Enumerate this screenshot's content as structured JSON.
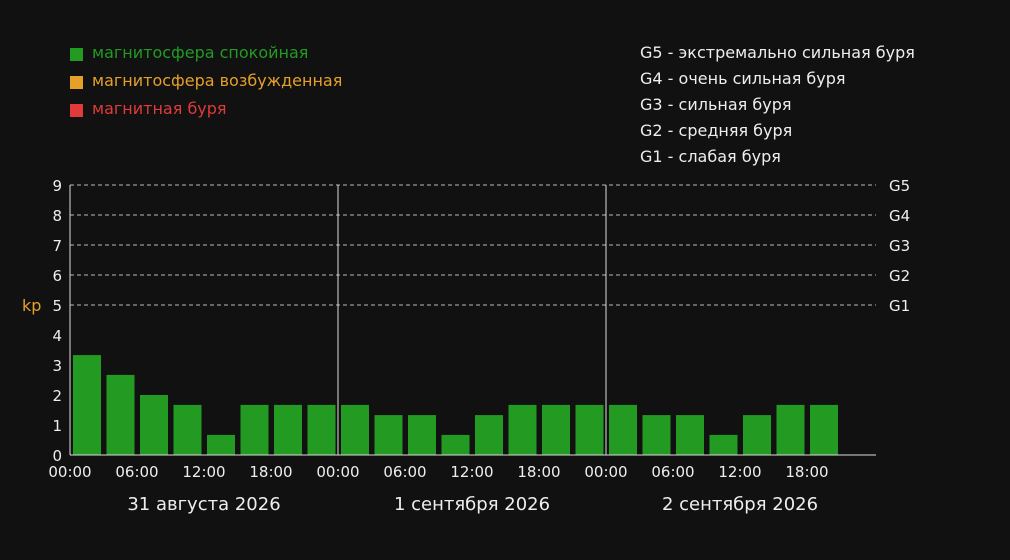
{
  "legend": {
    "items": [
      {
        "label": "магнитосфера спокойная",
        "color": "#239b23"
      },
      {
        "label": "магнитосфера возбужденная",
        "color": "#e6a02a"
      },
      {
        "label": "магнитная буря",
        "color": "#e03a3a"
      }
    ]
  },
  "storm_scale": [
    "G5 - экстремально сильная буря",
    "G4 - очень сильная буря",
    "G3 - сильная буря",
    "G2 - средняя буря",
    "G1 - слабая буря"
  ],
  "chart_data": {
    "type": "bar",
    "ylabel": "kp",
    "ylim": [
      0,
      9
    ],
    "y_ticks": [
      0,
      1,
      2,
      3,
      4,
      5,
      6,
      7,
      8,
      9
    ],
    "g_levels": [
      {
        "label": "G5",
        "value": 9
      },
      {
        "label": "G4",
        "value": 8
      },
      {
        "label": "G3",
        "value": 7
      },
      {
        "label": "G2",
        "value": 6
      },
      {
        "label": "G1",
        "value": 5
      }
    ],
    "x_tick_labels": [
      "00:00",
      "06:00",
      "12:00",
      "18:00",
      "00:00",
      "06:00",
      "12:00",
      "18:00",
      "00:00",
      "06:00",
      "12:00",
      "18:00"
    ],
    "days": [
      "31 августа 2026",
      "1 сентября 2026",
      "2 сентября 2026"
    ],
    "interval_hours": 3,
    "values": [
      3.33,
      2.67,
      2.0,
      1.67,
      0.67,
      1.67,
      1.67,
      1.67,
      1.67,
      1.33,
      1.33,
      0.67,
      1.33,
      1.67,
      1.67,
      1.67,
      1.67,
      1.33,
      1.33,
      0.67,
      1.33,
      1.67,
      1.67
    ],
    "grid": "dashed at G levels",
    "legend_position": "top-left"
  }
}
